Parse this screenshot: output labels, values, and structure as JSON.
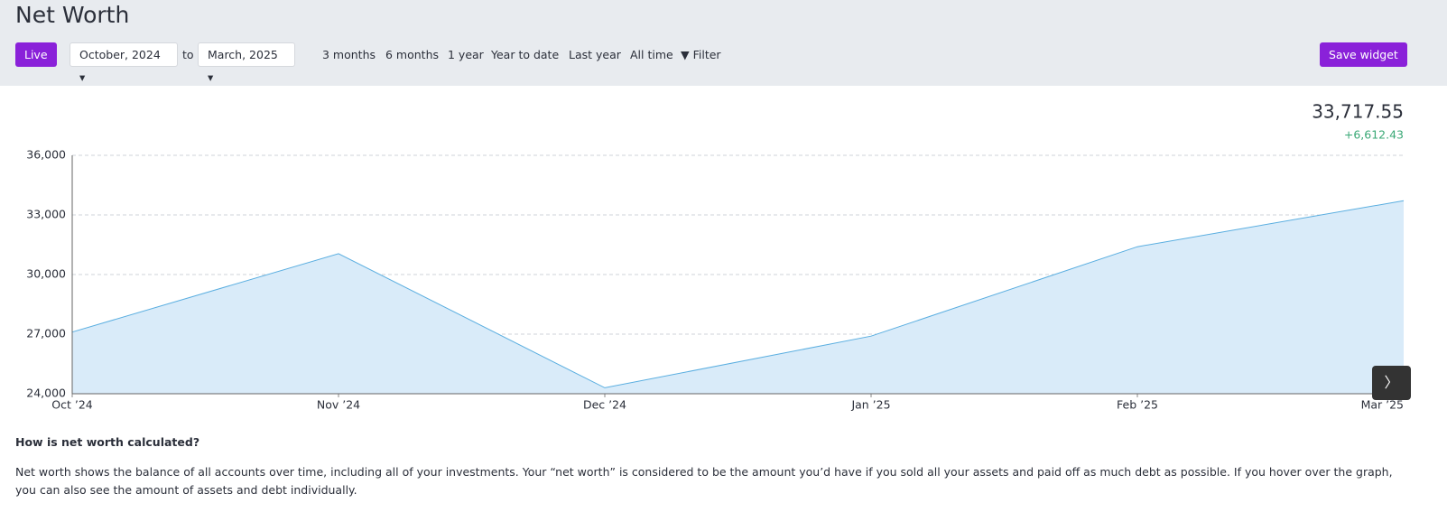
{
  "header": {
    "title": "Net Worth",
    "live": "Live",
    "from": "October, 2024",
    "to_label": "to",
    "to": "March, 2025",
    "ranges": [
      "3 months",
      "6 months",
      "1 year",
      "Year to date",
      "Last year",
      "All time"
    ],
    "filter": "Filter",
    "save": "Save widget"
  },
  "summary": {
    "total": "33,717.55",
    "change": "+6,612.43"
  },
  "chart_data": {
    "type": "area",
    "categories": [
      "Oct ’24",
      "Nov ’24",
      "Dec ’24",
      "Jan ’25",
      "Feb ’25",
      "Mar ’25"
    ],
    "values": [
      27105.12,
      31050,
      24300,
      26900,
      31400,
      33717.55
    ],
    "color": "#5aaee0",
    "fill": "#d9ebf9",
    "ylim": [
      24000,
      36000
    ],
    "yticks": [
      {
        "value": 24000,
        "label": "24,000"
      },
      {
        "value": 27000,
        "label": "27,000"
      },
      {
        "value": 30000,
        "label": "30,000"
      },
      {
        "value": 33000,
        "label": "33,000"
      },
      {
        "value": 36000,
        "label": "36,000"
      }
    ],
    "grid": true
  },
  "info": {
    "heading": "How is net worth calculated?",
    "text": "Net worth shows the balance of all accounts over time, including all of your investments. Your “net worth” is considered to be the amount you’d have if you sold all your assets and paid off as much debt as possible. If you hover over the graph, you can also see the amount of assets and debt individually."
  }
}
